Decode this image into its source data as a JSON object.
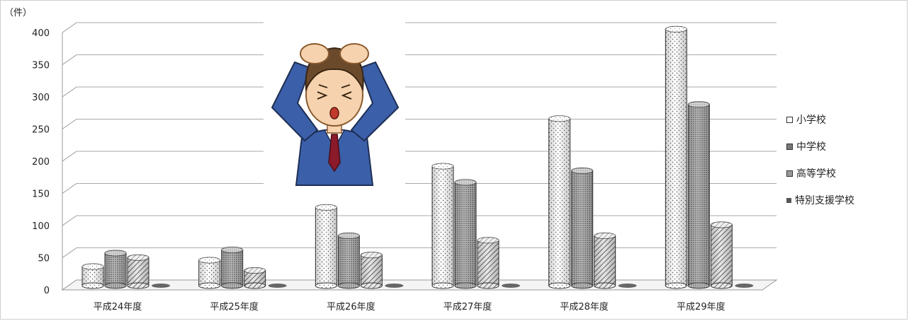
{
  "chart_data": {
    "type": "bar",
    "unit_label": "（件）",
    "categories": [
      "平成24年度",
      "平成25年度",
      "平成26年度",
      "平成27年度",
      "平成28年度",
      "平成29年度"
    ],
    "series": [
      {
        "name": "小学校",
        "values": [
          34,
          44,
          126,
          190,
          264,
          403
        ],
        "pattern": "dots"
      },
      {
        "name": "中学校",
        "values": [
          55,
          60,
          82,
          165,
          183,
          286
        ],
        "pattern": "dense"
      },
      {
        "name": "高等学校",
        "values": [
          48,
          28,
          52,
          75,
          82,
          99
        ],
        "pattern": "hatch"
      },
      {
        "name": "特別支援学校",
        "values": [
          0,
          0,
          0,
          0,
          0,
          0
        ],
        "pattern": "solid"
      }
    ],
    "y_ticks": [
      "0",
      "50",
      "100",
      "150",
      "200",
      "250",
      "300",
      "350",
      "400"
    ],
    "ylim": [
      0,
      400
    ],
    "grid": true,
    "legend_position": "right"
  },
  "illustration": {
    "icon": "stressed-man-holding-head-icon"
  }
}
